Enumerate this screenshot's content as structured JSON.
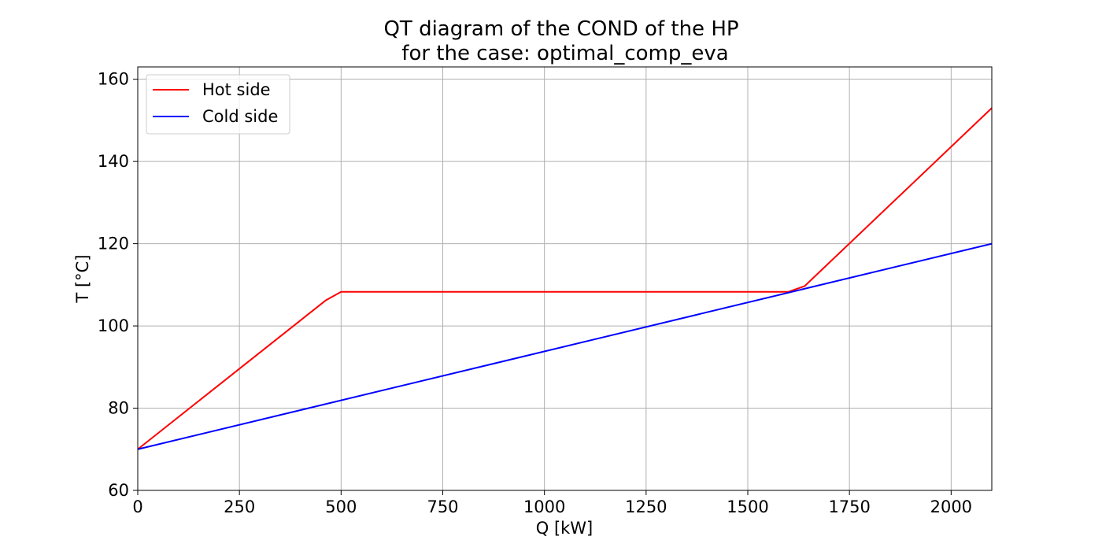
{
  "chart_data": {
    "type": "line",
    "title": "QT diagram of the COND of the HP",
    "subtitle": "for the case: optimal_comp_eva",
    "xlabel": "Q [kW]",
    "ylabel": "T [°C]",
    "xlim": [
      0,
      2100
    ],
    "ylim": [
      60,
      163
    ],
    "xticks": [
      0,
      250,
      500,
      750,
      1000,
      1250,
      1500,
      1750,
      2000
    ],
    "yticks": [
      60,
      80,
      100,
      120,
      140,
      160
    ],
    "grid": true,
    "legend_position": "upper-left",
    "series": [
      {
        "name": "Hot side",
        "color": "#ff0000",
        "x": [
          0,
          462,
          500,
          1600,
          1640,
          2100
        ],
        "y": [
          70,
          106.2,
          108.3,
          108.3,
          109.7,
          153
        ]
      },
      {
        "name": "Cold side",
        "color": "#0000ff",
        "x": [
          0,
          2100
        ],
        "y": [
          70,
          120
        ]
      }
    ]
  }
}
